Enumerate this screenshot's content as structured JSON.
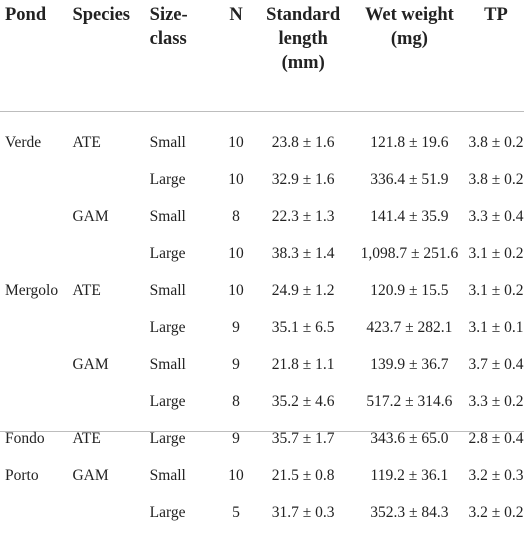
{
  "headers": {
    "pond": "Pond",
    "species": "Species",
    "size_class_1": "Size-",
    "size_class_2": "class",
    "n": "N",
    "standard_length_1": "Standard",
    "standard_length_2": "length",
    "standard_length_3": "(mm)",
    "wet_weight_1": "Wet weight",
    "wet_weight_2": "(mg)",
    "tp": "TP"
  },
  "rows": [
    {
      "pond": "Verde",
      "species": "ATE",
      "size": "Small",
      "n": "10",
      "std": "23.8 ± 1.6",
      "wet": "121.8 ± 19.6",
      "tp": "3.8 ± 0.2"
    },
    {
      "pond": "",
      "species": "",
      "size": "Large",
      "n": "10",
      "std": "32.9 ± 1.6",
      "wet": "336.4 ± 51.9",
      "tp": "3.8 ± 0.2"
    },
    {
      "pond": "",
      "species": "GAM",
      "size": "Small",
      "n": "8",
      "std": "22.3 ± 1.3",
      "wet": "141.4 ± 35.9",
      "tp": "3.3 ± 0.4"
    },
    {
      "pond": "",
      "species": "",
      "size": "Large",
      "n": "10",
      "std": "38.3 ± 1.4",
      "wet": "1,098.7 ± 251.6",
      "tp": "3.1 ± 0.2"
    },
    {
      "pond": "Mergolo",
      "species": "ATE",
      "size": "Small",
      "n": "10",
      "std": "24.9 ± 1.2",
      "wet": "120.9 ± 15.5",
      "tp": "3.1 ± 0.2"
    },
    {
      "pond": "",
      "species": "",
      "size": "Large",
      "n": "9",
      "std": "35.1 ± 6.5",
      "wet": "423.7 ± 282.1",
      "tp": "3.1 ± 0.1"
    },
    {
      "pond": "",
      "species": "GAM",
      "size": "Small",
      "n": "9",
      "std": "21.8 ± 1.1",
      "wet": "139.9 ± 36.7",
      "tp": "3.7 ± 0.4"
    },
    {
      "pond": "",
      "species": "",
      "size": "Large",
      "n": "8",
      "std": "35.2 ± 4.6",
      "wet": "517.2 ± 314.6",
      "tp": "3.3 ± 0.2"
    },
    {
      "pond": "Fondo",
      "species": "ATE",
      "size": "Large",
      "n": "9",
      "std": "35.7 ± 1.7",
      "wet": "343.6 ± 65.0",
      "tp": "2.8 ± 0.4"
    },
    {
      "pond": "Porto",
      "species": "GAM",
      "size": "Small",
      "n": "10",
      "std": "21.5 ± 0.8",
      "wet": "119.2 ± 36.1",
      "tp": "3.2 ± 0.3"
    },
    {
      "pond": "",
      "species": "",
      "size": "Large",
      "n": "5",
      "std": "31.7 ± 0.3",
      "wet": "352.3 ± 84.3",
      "tp": "3.2 ± 0.2"
    }
  ]
}
